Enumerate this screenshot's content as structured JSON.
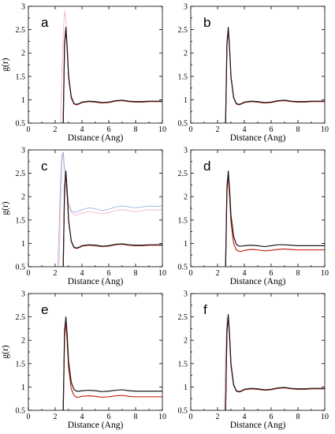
{
  "colors": {
    "background": "#ffffff",
    "axis": "#000000",
    "curve_black": "#1a1a1a",
    "curve_red": "#cc2a1a",
    "curve_pink": "#f2a6c0",
    "curve_blue": "#8fa6e0"
  },
  "chart_data": [
    {
      "type": "line",
      "panel_label": "a",
      "xlabel": "Distance (Ang)",
      "ylabel": "g(r)",
      "xlim": [
        0,
        10
      ],
      "ylim": [
        0.5,
        3
      ],
      "xticks": [
        "0",
        "2",
        "4",
        "6",
        "8",
        "10"
      ],
      "yticks": [
        "0.5",
        "1",
        "1.5",
        "2",
        "2.5",
        "3"
      ],
      "grid": false,
      "series": [
        {
          "color": "#1a1a1a",
          "x": [
            2.6,
            2.7,
            2.8,
            2.9,
            3.0,
            3.2,
            3.4,
            3.6,
            3.8,
            4.0,
            4.5,
            5.0,
            5.5,
            6.0,
            6.5,
            7.0,
            7.5,
            8.0,
            8.5,
            9.0,
            9.5,
            10.0
          ],
          "y": [
            0.5,
            2.2,
            2.55,
            2.1,
            1.5,
            1.05,
            0.92,
            0.9,
            0.92,
            0.95,
            0.97,
            0.96,
            0.94,
            0.95,
            0.98,
            0.99,
            0.97,
            0.96,
            0.96,
            0.97,
            0.97,
            0.97
          ]
        },
        {
          "color": "#cc2a1a",
          "x": [
            2.6,
            2.7,
            2.8,
            2.9,
            3.0,
            3.2,
            3.4,
            3.6,
            3.8,
            4.0,
            4.5,
            5.0,
            5.5,
            6.0,
            6.5,
            7.0,
            7.5,
            8.0,
            8.5,
            9.0,
            9.5,
            10.0
          ],
          "y": [
            0.5,
            2.15,
            2.5,
            2.08,
            1.48,
            1.04,
            0.91,
            0.89,
            0.91,
            0.94,
            0.96,
            0.95,
            0.93,
            0.94,
            0.97,
            0.98,
            0.96,
            0.95,
            0.95,
            0.96,
            0.96,
            0.96
          ]
        },
        {
          "color": "#f2a6c0",
          "x": [
            2.4,
            2.5,
            2.6,
            2.7,
            2.8,
            2.9,
            3.0,
            3.2,
            3.4
          ],
          "y": [
            0.5,
            1.6,
            2.4,
            2.9,
            2.75,
            2.2,
            1.6,
            1.1,
            0.95
          ]
        }
      ]
    },
    {
      "type": "line",
      "panel_label": "b",
      "xlabel": "Distance (Ang)",
      "ylabel": "",
      "xlim": [
        0,
        10
      ],
      "ylim": [
        0.5,
        3
      ],
      "xticks": [
        "0",
        "2",
        "4",
        "6",
        "8",
        "10"
      ],
      "yticks": [
        "0.5",
        "1",
        "1.5",
        "2",
        "2.5",
        "3"
      ],
      "grid": false,
      "series": [
        {
          "color": "#1a1a1a",
          "x": [
            2.6,
            2.7,
            2.8,
            2.9,
            3.0,
            3.2,
            3.4,
            3.6,
            3.8,
            4.0,
            4.5,
            5.0,
            5.5,
            6.0,
            6.5,
            7.0,
            7.5,
            8.0,
            8.5,
            9.0,
            9.5,
            10.0
          ],
          "y": [
            0.5,
            2.2,
            2.55,
            2.1,
            1.5,
            1.05,
            0.92,
            0.9,
            0.92,
            0.95,
            0.97,
            0.96,
            0.94,
            0.95,
            0.98,
            0.99,
            0.97,
            0.96,
            0.96,
            0.97,
            0.97,
            0.97
          ]
        },
        {
          "color": "#cc2a1a",
          "x": [
            2.6,
            2.7,
            2.8,
            2.9,
            3.0,
            3.2,
            3.4,
            3.6,
            3.8,
            4.0,
            4.5,
            5.0,
            5.5,
            6.0,
            6.5,
            7.0,
            7.5,
            8.0,
            8.5,
            9.0,
            9.5,
            10.0
          ],
          "y": [
            0.5,
            2.15,
            2.5,
            2.08,
            1.48,
            1.04,
            0.91,
            0.89,
            0.91,
            0.94,
            0.96,
            0.95,
            0.93,
            0.94,
            0.97,
            0.98,
            0.96,
            0.95,
            0.95,
            0.96,
            0.96,
            0.96
          ]
        }
      ]
    },
    {
      "type": "line",
      "panel_label": "c",
      "xlabel": "Distance (Ang)",
      "ylabel": "g(r)",
      "xlim": [
        0,
        10
      ],
      "ylim": [
        0.5,
        3
      ],
      "xticks": [
        "0",
        "2",
        "4",
        "6",
        "8",
        "10"
      ],
      "yticks": [
        "0.5",
        "1",
        "1.5",
        "2",
        "2.5",
        "3"
      ],
      "grid": false,
      "series": [
        {
          "color": "#1a1a1a",
          "x": [
            2.6,
            2.7,
            2.8,
            2.9,
            3.0,
            3.2,
            3.4,
            3.6,
            3.8,
            4.0,
            4.5,
            5.0,
            5.5,
            6.0,
            6.5,
            7.0,
            7.5,
            8.0,
            8.5,
            9.0,
            9.5,
            10.0
          ],
          "y": [
            0.5,
            2.2,
            2.55,
            2.1,
            1.5,
            1.05,
            0.92,
            0.9,
            0.92,
            0.95,
            0.97,
            0.96,
            0.94,
            0.95,
            0.98,
            0.99,
            0.97,
            0.96,
            0.96,
            0.97,
            0.97,
            0.97
          ]
        },
        {
          "color": "#cc2a1a",
          "x": [
            2.6,
            2.7,
            2.8,
            2.9,
            3.0,
            3.2,
            3.4,
            3.6,
            3.8,
            4.0,
            4.5,
            5.0,
            5.5,
            6.0,
            6.5,
            7.0,
            7.5,
            8.0,
            8.5,
            9.0,
            9.5,
            10.0
          ],
          "y": [
            0.5,
            2.15,
            2.5,
            2.08,
            1.48,
            1.04,
            0.91,
            0.89,
            0.91,
            0.94,
            0.96,
            0.95,
            0.93,
            0.94,
            0.97,
            0.98,
            0.96,
            0.95,
            0.95,
            0.96,
            0.96,
            0.96
          ]
        },
        {
          "color": "#8fa6e0",
          "x": [
            2.2,
            2.3,
            2.4,
            2.5,
            2.6,
            2.7,
            2.8,
            3.0,
            3.2,
            3.5,
            4.0,
            4.5,
            5.0,
            5.5,
            6.0,
            6.5,
            7.0,
            7.5,
            8.0,
            8.5,
            9.0,
            9.5,
            10.0
          ],
          "y": [
            0.5,
            1.4,
            2.3,
            2.9,
            2.95,
            2.6,
            2.2,
            1.85,
            1.7,
            1.66,
            1.72,
            1.76,
            1.74,
            1.7,
            1.73,
            1.78,
            1.8,
            1.78,
            1.76,
            1.78,
            1.8,
            1.79,
            1.8
          ]
        },
        {
          "color": "#f2a6c0",
          "x": [
            2.3,
            2.4,
            2.5,
            2.6,
            2.7,
            2.8,
            3.0,
            3.2,
            3.5,
            4.0,
            4.5,
            5.0,
            5.5,
            6.0,
            6.5,
            7.0,
            7.5,
            8.0,
            8.5,
            9.0,
            9.5,
            10.0
          ],
          "y": [
            0.5,
            1.8,
            2.7,
            2.95,
            2.5,
            2.1,
            1.8,
            1.66,
            1.6,
            1.65,
            1.68,
            1.66,
            1.63,
            1.66,
            1.7,
            1.72,
            1.7,
            1.68,
            1.7,
            1.72,
            1.71,
            1.72
          ]
        }
      ]
    },
    {
      "type": "line",
      "panel_label": "d",
      "xlabel": "Distance (Ang)",
      "ylabel": "",
      "xlim": [
        0,
        10
      ],
      "ylim": [
        0.5,
        3
      ],
      "xticks": [
        "0",
        "2",
        "4",
        "6",
        "8",
        "10"
      ],
      "yticks": [
        "0.5",
        "1",
        "1.5",
        "2",
        "2.5",
        "3"
      ],
      "grid": false,
      "series": [
        {
          "color": "#1a1a1a",
          "x": [
            2.6,
            2.7,
            2.8,
            2.9,
            3.0,
            3.2,
            3.4,
            3.6,
            3.8,
            4.0,
            4.5,
            5.0,
            5.5,
            6.0,
            6.5,
            7.0,
            7.5,
            8.0,
            8.5,
            9.0,
            9.5,
            10.0
          ],
          "y": [
            0.5,
            2.2,
            2.55,
            2.15,
            1.6,
            1.15,
            0.98,
            0.94,
            0.94,
            0.95,
            0.96,
            0.95,
            0.93,
            0.95,
            0.97,
            0.97,
            0.96,
            0.95,
            0.95,
            0.95,
            0.95,
            0.95
          ]
        },
        {
          "color": "#cc2a1a",
          "x": [
            2.6,
            2.7,
            2.8,
            2.9,
            3.0,
            3.2,
            3.4,
            3.6,
            3.8,
            4.0,
            4.5,
            5.0,
            5.5,
            6.0,
            6.5,
            7.0,
            7.5,
            8.0,
            8.5,
            9.0,
            9.5,
            10.0
          ],
          "y": [
            0.5,
            2.1,
            2.45,
            2.0,
            1.45,
            1.0,
            0.86,
            0.83,
            0.83,
            0.85,
            0.87,
            0.86,
            0.84,
            0.85,
            0.87,
            0.88,
            0.87,
            0.86,
            0.86,
            0.86,
            0.86,
            0.86
          ]
        }
      ]
    },
    {
      "type": "line",
      "panel_label": "e",
      "xlabel": "Distance (Ang)",
      "ylabel": "g(r)",
      "xlim": [
        0,
        10
      ],
      "ylim": [
        0.5,
        3
      ],
      "xticks": [
        "0",
        "2",
        "4",
        "6",
        "8",
        "10"
      ],
      "yticks": [
        "0.5",
        "1",
        "1.5",
        "2",
        "2.5",
        "3"
      ],
      "grid": false,
      "series": [
        {
          "color": "#1a1a1a",
          "x": [
            2.6,
            2.7,
            2.8,
            2.9,
            3.0,
            3.2,
            3.4,
            3.6,
            3.8,
            4.0,
            4.5,
            5.0,
            5.5,
            6.0,
            6.5,
            7.0,
            7.5,
            8.0,
            8.5,
            9.0,
            9.5,
            10.0
          ],
          "y": [
            0.5,
            2.2,
            2.5,
            2.1,
            1.55,
            1.1,
            0.95,
            0.91,
            0.91,
            0.92,
            0.93,
            0.92,
            0.9,
            0.91,
            0.93,
            0.94,
            0.92,
            0.91,
            0.91,
            0.91,
            0.91,
            0.91
          ]
        },
        {
          "color": "#cc2a1a",
          "x": [
            2.6,
            2.7,
            2.8,
            2.9,
            3.0,
            3.2,
            3.4,
            3.6,
            3.8,
            4.0,
            4.5,
            5.0,
            5.5,
            6.0,
            6.5,
            7.0,
            7.5,
            8.0,
            8.5,
            9.0,
            9.5,
            10.0
          ],
          "y": [
            0.5,
            2.05,
            2.4,
            1.95,
            1.4,
            0.96,
            0.82,
            0.78,
            0.78,
            0.8,
            0.81,
            0.8,
            0.78,
            0.79,
            0.81,
            0.82,
            0.8,
            0.79,
            0.79,
            0.79,
            0.79,
            0.79
          ]
        }
      ]
    },
    {
      "type": "line",
      "panel_label": "f",
      "xlabel": "Distance (Ang)",
      "ylabel": "",
      "xlim": [
        0,
        10
      ],
      "ylim": [
        0.5,
        3
      ],
      "xticks": [
        "0",
        "2",
        "4",
        "6",
        "8",
        "10"
      ],
      "yticks": [
        "0.5",
        "1",
        "1.5",
        "2",
        "2.5",
        "3"
      ],
      "grid": false,
      "series": [
        {
          "color": "#1a1a1a",
          "x": [
            2.6,
            2.7,
            2.8,
            2.9,
            3.0,
            3.2,
            3.4,
            3.6,
            3.8,
            4.0,
            4.5,
            5.0,
            5.5,
            6.0,
            6.5,
            7.0,
            7.5,
            8.0,
            8.5,
            9.0,
            9.5,
            10.0
          ],
          "y": [
            0.5,
            2.2,
            2.55,
            2.1,
            1.5,
            1.05,
            0.92,
            0.9,
            0.92,
            0.95,
            0.97,
            0.96,
            0.94,
            0.95,
            0.98,
            0.99,
            0.97,
            0.96,
            0.96,
            0.97,
            0.97,
            0.97
          ]
        },
        {
          "color": "#cc2a1a",
          "x": [
            2.6,
            2.7,
            2.8,
            2.9,
            3.0,
            3.2,
            3.4,
            3.6,
            3.8,
            4.0,
            4.5,
            5.0,
            5.5,
            6.0,
            6.5,
            7.0,
            7.5,
            8.0,
            8.5,
            9.0,
            9.5,
            10.0
          ],
          "y": [
            0.5,
            2.15,
            2.5,
            2.08,
            1.48,
            1.04,
            0.91,
            0.89,
            0.91,
            0.94,
            0.96,
            0.95,
            0.93,
            0.94,
            0.97,
            0.98,
            0.96,
            0.95,
            0.95,
            0.96,
            0.96,
            0.96
          ]
        },
        {
          "color": "#f2a6c0",
          "x": [
            2.5,
            2.6,
            2.7,
            2.8,
            2.9,
            3.0,
            3.2
          ],
          "y": [
            0.5,
            1.8,
            2.5,
            2.4,
            1.9,
            1.4,
            1.0
          ]
        }
      ]
    }
  ]
}
